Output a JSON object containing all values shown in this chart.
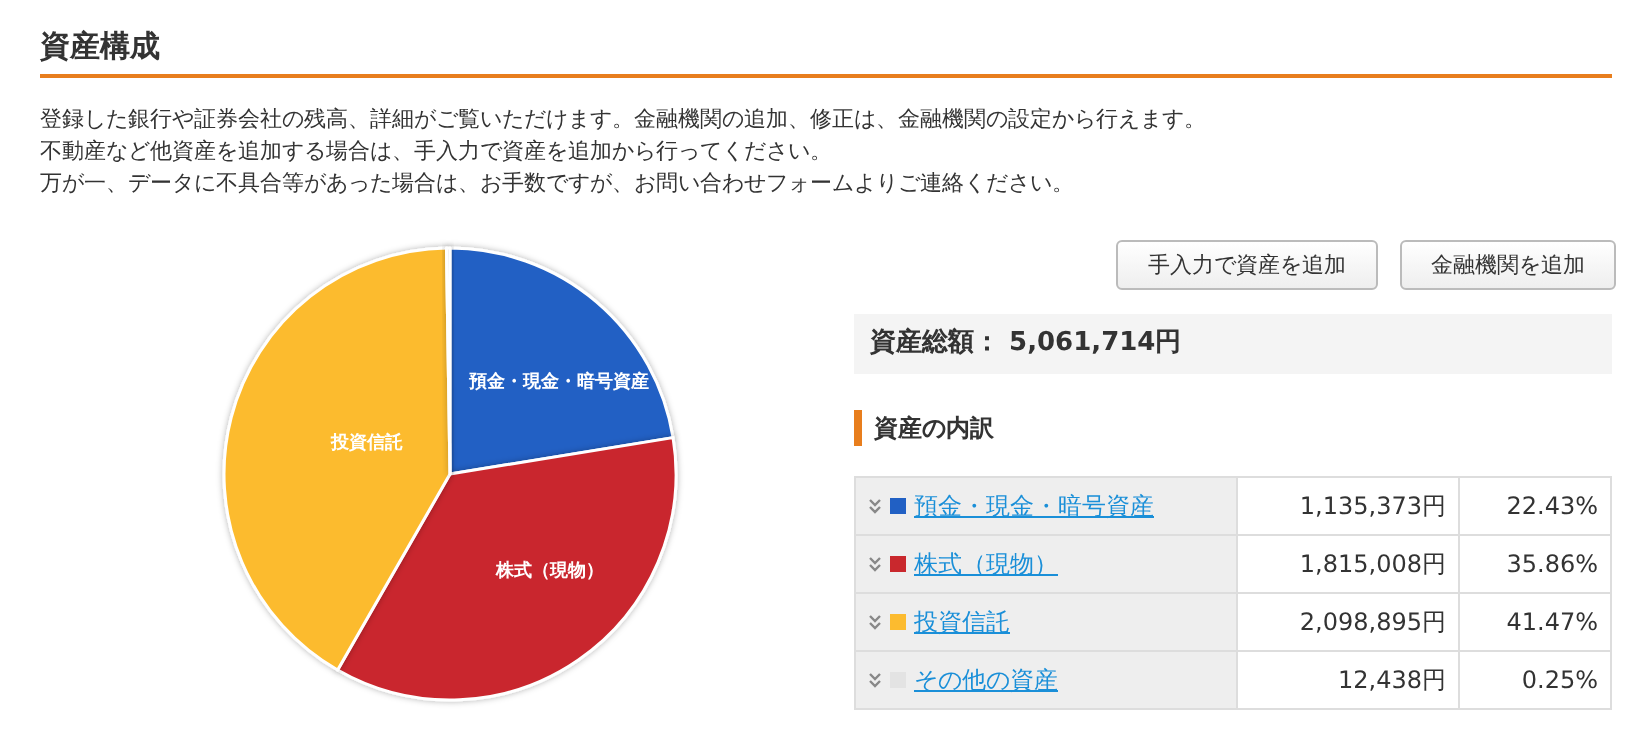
{
  "chart_data": {
    "type": "pie",
    "title": "資産構成",
    "subtitle": "登録した銀行や証券会社の残高、詳細がご覧いただけます。金融機関の追加、修正は、金融機関の設定から行えます。",
    "categories": [
      "預金・現金・暗号資産",
      "株式（現物）",
      "投資信託",
      "その他の資産"
    ],
    "values": [
      22.43,
      35.86,
      41.47,
      0.25
    ],
    "legend": "right",
    "colors": [
      "#2160c4",
      "#c9282d",
      "#fcbb2f",
      "#e3e3e3"
    ],
    "annotations": [
      "不動産など他資産を追加する場合は、手入力で資産を追加から行ってください。",
      "万が一、データに不具合等があった場合は、お手数ですが、お問い合わせフォームよりご連絡ください。",
      "手入力で資産を追加",
      "金融機関を追加",
      "資産総額： 5,061,714円",
      "資産の内訳",
      "1,135,373円",
      "1,815,008円",
      "2,098,895円",
      "12,438円",
      "22.43%",
      "35.86%",
      "41.47%",
      "0.25%"
    ]
  }
}
